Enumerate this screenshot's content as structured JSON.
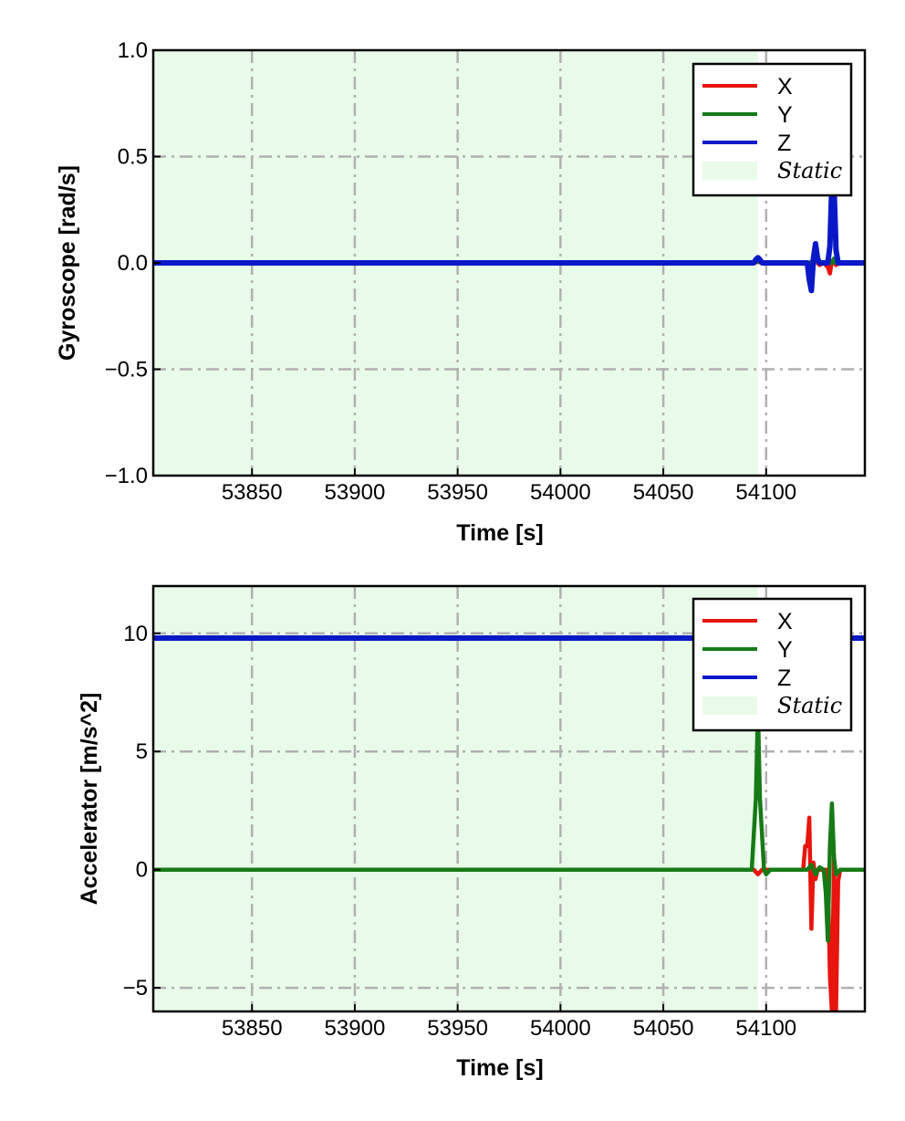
{
  "chart_data": [
    {
      "type": "line",
      "xlabel": "Time [s]",
      "ylabel": "Gyroscope [rad/s]",
      "xlim": [
        53802,
        54148
      ],
      "ylim": [
        -1.0,
        1.0
      ],
      "xticks": [
        53850,
        53900,
        53950,
        54000,
        54050,
        54100
      ],
      "xtick_labels": [
        "53850",
        "53900",
        "53950",
        "54000",
        "54050",
        "54100"
      ],
      "yticks": [
        -1.0,
        -0.5,
        0.0,
        0.5,
        1.0
      ],
      "ytick_labels": [
        "−1.0",
        "−0.5",
        "0.0",
        "0.5",
        "1.0"
      ],
      "grid": true,
      "legend_position": "top-right",
      "static_region": {
        "label": "Static",
        "x": [
          53802,
          54096
        ],
        "color": "#e8fbe8"
      },
      "series": [
        {
          "name": "X",
          "color": "#e8140e",
          "x": [
            53802,
            54094,
            54096,
            54098,
            54120,
            54122,
            54124,
            54126,
            54128,
            54130,
            54131,
            54132,
            54133,
            54134,
            54136,
            54148
          ],
          "y": [
            0.0,
            0.0,
            0.005,
            0.0,
            0.0,
            -0.03,
            0.01,
            -0.01,
            0.0,
            -0.02,
            -0.05,
            0.01,
            0.0,
            -0.01,
            0.0,
            0.0
          ]
        },
        {
          "name": "Y",
          "color": "#167a16",
          "x": [
            53802,
            54094,
            54096,
            54098,
            54120,
            54124,
            54128,
            54132,
            54133,
            54134,
            54136,
            54148
          ],
          "y": [
            0.0,
            0.0,
            0.01,
            0.0,
            0.0,
            0.01,
            0.0,
            0.0,
            0.02,
            0.0,
            0.0,
            0.0
          ]
        },
        {
          "name": "Z",
          "color": "#0a19c8",
          "x": [
            53802,
            54094,
            54095,
            54096,
            54097,
            54098,
            54120,
            54121,
            54122,
            54123,
            54124,
            54125,
            54126,
            54130,
            54131,
            54132,
            54133,
            54134,
            54135,
            54136,
            54148
          ],
          "y": [
            0.0,
            0.0,
            0.015,
            0.025,
            0.015,
            0.0,
            0.0,
            -0.08,
            -0.13,
            0.02,
            0.09,
            0.02,
            0.0,
            0.0,
            0.08,
            0.38,
            0.36,
            0.06,
            0.0,
            0.0,
            0.0
          ]
        }
      ]
    },
    {
      "type": "line",
      "xlabel": "Time [s]",
      "ylabel": "Accelerator [m/s^2]",
      "xlim": [
        53802,
        54148
      ],
      "ylim": [
        -6,
        12
      ],
      "xticks": [
        53850,
        53900,
        53950,
        54000,
        54050,
        54100
      ],
      "xtick_labels": [
        "53850",
        "53900",
        "53950",
        "54000",
        "54050",
        "54100"
      ],
      "yticks": [
        -5,
        0,
        5,
        10
      ],
      "ytick_labels": [
        "−5",
        "0",
        "5",
        "10"
      ],
      "grid": true,
      "legend_position": "top-right",
      "static_region": {
        "label": "Static",
        "x": [
          53802,
          54096
        ],
        "color": "#e8fbe8"
      },
      "series": [
        {
          "name": "X",
          "color": "#e8140e",
          "x": [
            53802,
            54094,
            54096,
            54098,
            54118,
            54119,
            54120,
            54121,
            54122,
            54123,
            54124,
            54125,
            54126,
            54130,
            54131,
            54132,
            54133,
            54134,
            54135,
            54136,
            54138,
            54148
          ],
          "y": [
            0.0,
            0.0,
            -0.2,
            0.0,
            0.0,
            1.0,
            1.0,
            2.2,
            -2.5,
            0.3,
            -0.4,
            0.0,
            0.0,
            0.0,
            -4.5,
            -6.0,
            0.6,
            -6.0,
            -0.5,
            0.0,
            0.0,
            0.0
          ]
        },
        {
          "name": "Y",
          "color": "#167a16",
          "x": [
            53802,
            54093,
            54095,
            54096,
            54097,
            54099,
            54100,
            54102,
            54120,
            54122,
            54124,
            54126,
            54128,
            54129,
            54130,
            54131,
            54132,
            54133,
            54134,
            54136,
            54138,
            54148
          ],
          "y": [
            0.0,
            0.0,
            3.0,
            6.8,
            3.0,
            0.0,
            -0.2,
            0.0,
            0.0,
            0.2,
            -0.2,
            0.1,
            0.0,
            -1.0,
            -3.0,
            1.0,
            2.8,
            0.5,
            -0.2,
            0.0,
            0.0,
            0.0
          ]
        },
        {
          "name": "Z",
          "color": "#0a19c8",
          "x": [
            53802,
            54148
          ],
          "y": [
            9.8,
            9.8
          ]
        }
      ]
    }
  ]
}
